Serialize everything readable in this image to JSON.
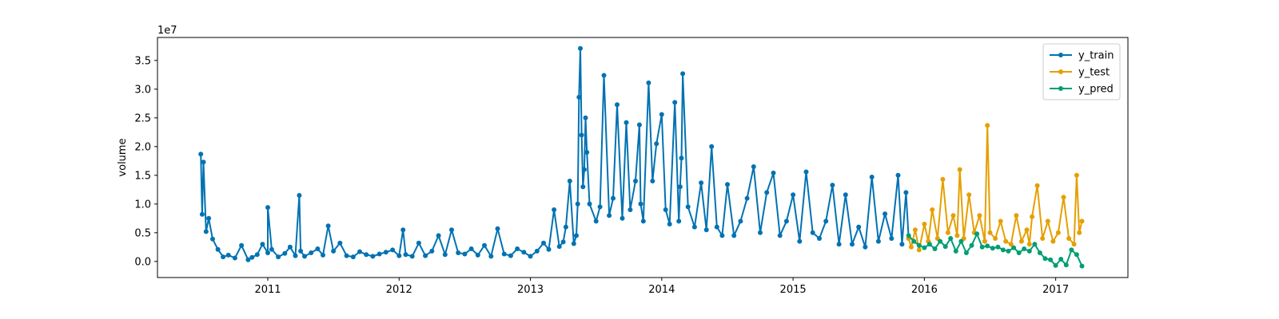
{
  "chart_data": {
    "type": "line",
    "title": "",
    "xlabel": "",
    "ylabel": "volume",
    "y_scale_label": "1e7",
    "xlim": [
      2010.16,
      2017.55
    ],
    "ylim": [
      -2800000,
      39000000
    ],
    "x_ticks": [
      2011,
      2012,
      2013,
      2014,
      2015,
      2016,
      2017
    ],
    "x_tick_labels": [
      "2011",
      "2012",
      "2013",
      "2014",
      "2015",
      "2016",
      "2017"
    ],
    "y_ticks": [
      0,
      5000000,
      10000000,
      15000000,
      20000000,
      25000000,
      30000000,
      35000000
    ],
    "y_tick_labels": [
      "0.0",
      "0.5",
      "1.0",
      "1.5",
      "2.0",
      "2.5",
      "3.0",
      "3.5"
    ],
    "grid": false,
    "legend_position": "top-right",
    "series": [
      {
        "name": "y_train",
        "color": "#0072b2",
        "marker": "circle",
        "x": [
          2010.49,
          2010.5,
          2010.51,
          2010.53,
          2010.55,
          2010.58,
          2010.62,
          2010.66,
          2010.7,
          2010.75,
          2010.8,
          2010.85,
          2010.88,
          2010.92,
          2010.96,
          2011.0,
          2011.0,
          2011.03,
          2011.08,
          2011.13,
          2011.17,
          2011.21,
          2011.24,
          2011.25,
          2011.28,
          2011.33,
          2011.38,
          2011.42,
          2011.46,
          2011.5,
          2011.55,
          2011.6,
          2011.65,
          2011.7,
          2011.75,
          2011.8,
          2011.85,
          2011.9,
          2011.95,
          2012.0,
          2012.03,
          2012.05,
          2012.1,
          2012.15,
          2012.2,
          2012.25,
          2012.3,
          2012.35,
          2012.4,
          2012.45,
          2012.5,
          2012.55,
          2012.6,
          2012.65,
          2012.7,
          2012.75,
          2012.8,
          2012.85,
          2012.9,
          2012.95,
          2013.0,
          2013.05,
          2013.1,
          2013.14,
          2013.18,
          2013.22,
          2013.25,
          2013.27,
          2013.3,
          2013.33,
          2013.35,
          2013.36,
          2013.37,
          2013.38,
          2013.39,
          2013.4,
          2013.41,
          2013.42,
          2013.43,
          2013.45,
          2013.5,
          2013.53,
          2013.56,
          2013.6,
          2013.63,
          2013.66,
          2013.7,
          2013.73,
          2013.76,
          2013.8,
          2013.83,
          2013.84,
          2013.86,
          2013.9,
          2013.93,
          2013.96,
          2014.0,
          2014.03,
          2014.06,
          2014.1,
          2014.13,
          2014.14,
          2014.15,
          2014.16,
          2014.2,
          2014.25,
          2014.3,
          2014.34,
          2014.38,
          2014.42,
          2014.46,
          2014.5,
          2014.55,
          2014.6,
          2014.65,
          2014.7,
          2014.75,
          2014.8,
          2014.85,
          2014.9,
          2014.95,
          2015.0,
          2015.05,
          2015.1,
          2015.15,
          2015.2,
          2015.25,
          2015.3,
          2015.35,
          2015.4,
          2015.45,
          2015.5,
          2015.55,
          2015.6,
          2015.65,
          2015.7,
          2015.75,
          2015.8,
          2015.83,
          2015.86,
          2015.88
        ],
        "values": [
          18700000,
          8200000,
          17300000,
          5200000,
          7500000,
          3900000,
          2100000,
          800000,
          1100000,
          600000,
          2800000,
          300000,
          700000,
          1200000,
          3000000,
          1500000,
          9400000,
          2100000,
          800000,
          1400000,
          2500000,
          1000000,
          11500000,
          1800000,
          900000,
          1500000,
          2200000,
          1100000,
          6200000,
          1800000,
          3200000,
          1000000,
          800000,
          1700000,
          1200000,
          900000,
          1300000,
          1600000,
          2000000,
          1000000,
          5500000,
          1200000,
          900000,
          3200000,
          1000000,
          1800000,
          4500000,
          1200000,
          5500000,
          1500000,
          1300000,
          2200000,
          1100000,
          2800000,
          900000,
          5700000,
          1300000,
          1000000,
          2200000,
          1600000,
          900000,
          1800000,
          3200000,
          2100000,
          9000000,
          2600000,
          3400000,
          6000000,
          14000000,
          3100000,
          4500000,
          10000000,
          28600000,
          37100000,
          22000000,
          13000000,
          16000000,
          25000000,
          19000000,
          10000000,
          7000000,
          9500000,
          32400000,
          8000000,
          11000000,
          27300000,
          7500000,
          24200000,
          9000000,
          14000000,
          23800000,
          10000000,
          7000000,
          31100000,
          14000000,
          20500000,
          25600000,
          9000000,
          6500000,
          27700000,
          7000000,
          13000000,
          18000000,
          32700000,
          9500000,
          6000000,
          13700000,
          5500000,
          20000000,
          6000000,
          4500000,
          13400000,
          4500000,
          7000000,
          11000000,
          16500000,
          5000000,
          12000000,
          15400000,
          4500000,
          7000000,
          11600000,
          3500000,
          15600000,
          5000000,
          4000000,
          7000000,
          13300000,
          3000000,
          11600000,
          3000000,
          6000000,
          2500000,
          14700000,
          3500000,
          8300000,
          4000000,
          15000000,
          3000000,
          12000000,
          4000000
        ]
      },
      {
        "name": "y_test",
        "color": "#e69f00",
        "marker": "circle",
        "x": [
          2015.88,
          2015.9,
          2015.93,
          2015.96,
          2016.0,
          2016.03,
          2016.06,
          2016.1,
          2016.14,
          2016.18,
          2016.22,
          2016.25,
          2016.27,
          2016.3,
          2016.34,
          2016.38,
          2016.42,
          2016.46,
          2016.48,
          2016.5,
          2016.54,
          2016.58,
          2016.62,
          2016.66,
          2016.7,
          2016.74,
          2016.78,
          2016.8,
          2016.82,
          2016.86,
          2016.9,
          2016.94,
          2016.98,
          2017.02,
          2017.06,
          2017.1,
          2017.14,
          2017.16,
          2017.18,
          2017.2
        ],
        "values": [
          4000000,
          2500000,
          5500000,
          2000000,
          6500000,
          3500000,
          9000000,
          4000000,
          14300000,
          5000000,
          8000000,
          4500000,
          16000000,
          4000000,
          11600000,
          5000000,
          8000000,
          3500000,
          23700000,
          5000000,
          4000000,
          7000000,
          3500000,
          3000000,
          8000000,
          3500000,
          5500000,
          3000000,
          7800000,
          13200000,
          4000000,
          7000000,
          3500000,
          5000000,
          11200000,
          4000000,
          3000000,
          15000000,
          5000000,
          7000000
        ]
      },
      {
        "name": "y_pred",
        "color": "#009e73",
        "marker": "circle",
        "x": [
          2015.88,
          2015.92,
          2015.96,
          2016.0,
          2016.04,
          2016.08,
          2016.12,
          2016.16,
          2016.2,
          2016.24,
          2016.28,
          2016.32,
          2016.36,
          2016.4,
          2016.44,
          2016.48,
          2016.52,
          2016.56,
          2016.6,
          2016.64,
          2016.68,
          2016.72,
          2016.76,
          2016.8,
          2016.84,
          2016.88,
          2016.92,
          2016.96,
          2017.0,
          2017.04,
          2017.08,
          2017.12,
          2017.16,
          2017.2
        ],
        "values": [
          4500000,
          3500000,
          2800000,
          2400000,
          3000000,
          2200000,
          3500000,
          2600000,
          4000000,
          1800000,
          3500000,
          1500000,
          2800000,
          4800000,
          2500000,
          2700000,
          2300000,
          2500000,
          2000000,
          1800000,
          2400000,
          1500000,
          2200000,
          1800000,
          3000000,
          1500000,
          500000,
          300000,
          -700000,
          400000,
          -600000,
          2000000,
          1200000,
          -800000
        ]
      }
    ]
  }
}
